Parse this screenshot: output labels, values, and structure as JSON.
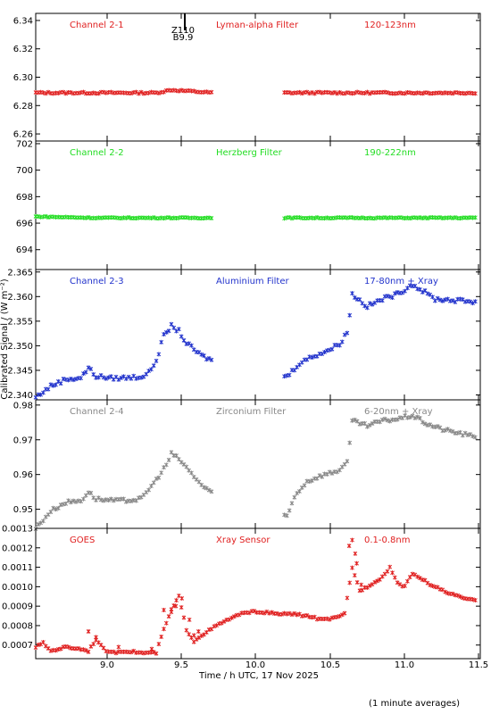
{
  "figure": {
    "xlabel": "Time / h UTC, 17 Nov 2025",
    "ylabel": "Calibrated Signal / (W m⁻²)",
    "footnote": "(1 minute averages)",
    "x_ticks": [
      "9.0",
      "9.5",
      "10.0",
      "10.5",
      "11.0",
      "11.5"
    ],
    "flare_marker": {
      "label_top": "Z110",
      "label_bottom": "B9.9"
    }
  },
  "chart_data": [
    {
      "type": "scatter",
      "panel": "channel-2-1",
      "labels": [
        "Channel 2-1",
        "Lyman-alpha Filter",
        "120-123nm"
      ],
      "color": "#e02020",
      "xlim": [
        8.6,
        11.55
      ],
      "ylim": [
        6.255,
        6.345
      ],
      "y_ticks": [
        "6.34",
        "6.32",
        "6.30",
        "6.28",
        "6.26"
      ],
      "gaps": [
        [
          9.78,
          10.25
        ]
      ],
      "x": [
        8.6,
        9.0,
        9.4,
        9.5,
        9.78,
        10.25,
        10.7,
        11.0,
        11.5
      ],
      "values": [
        6.289,
        6.289,
        6.289,
        6.291,
        6.289,
        6.289,
        6.289,
        6.289,
        6.289
      ],
      "noise": 0.0006
    },
    {
      "type": "scatter",
      "panel": "channel-2-2",
      "labels": [
        "Channel 2-2",
        "Herzberg Filter",
        "190-222nm"
      ],
      "color": "#22dd22",
      "xlim": [
        8.6,
        11.55
      ],
      "ylim": [
        692.5,
        702.2
      ],
      "y_ticks": [
        "702",
        "700",
        "698",
        "696",
        "694"
      ],
      "gaps": [
        [
          9.78,
          10.25
        ]
      ],
      "x": [
        8.6,
        9.0,
        9.5,
        9.78,
        10.25,
        10.8,
        11.5
      ],
      "values": [
        696.5,
        696.4,
        696.4,
        696.4,
        696.4,
        696.4,
        696.4
      ],
      "noise": 0.04
    },
    {
      "type": "scatter",
      "panel": "channel-2-3",
      "labels": [
        "Channel 2-3",
        "Aluminium Filter",
        "17-80nm + Xray"
      ],
      "color": "#2233cc",
      "xlim": [
        8.6,
        11.55
      ],
      "ylim": [
        2.339,
        2.3655
      ],
      "y_ticks": [
        "2.365",
        "2.360",
        "2.355",
        "2.350",
        "2.345",
        "2.340"
      ],
      "gaps": [
        [
          9.78,
          10.25
        ]
      ],
      "x": [
        8.6,
        8.7,
        8.8,
        8.9,
        8.95,
        9.0,
        9.1,
        9.2,
        9.3,
        9.35,
        9.4,
        9.45,
        9.5,
        9.55,
        9.6,
        9.7,
        9.77,
        10.27,
        10.35,
        10.45,
        10.55,
        10.62,
        10.67,
        10.7,
        10.8,
        10.9,
        11.0,
        11.1,
        11.15,
        11.25,
        11.35,
        11.5
      ],
      "values": [
        2.3395,
        2.3418,
        2.3432,
        2.3435,
        2.3455,
        2.3438,
        2.3434,
        2.3435,
        2.3437,
        2.3445,
        2.347,
        2.352,
        2.354,
        2.353,
        2.3505,
        2.348,
        2.347,
        2.3438,
        2.3465,
        2.348,
        2.3492,
        2.3505,
        2.353,
        2.3605,
        2.358,
        2.3595,
        2.3605,
        2.3625,
        2.3615,
        2.3595,
        2.3593,
        2.359
      ],
      "noise": 0.0004
    },
    {
      "type": "scatter",
      "panel": "channel-2-4",
      "labels": [
        "Channel 2-4",
        "Zirconium Filter",
        "6-20nm + Xray"
      ],
      "color": "#888888",
      "xlim": [
        8.6,
        11.55
      ],
      "ylim": [
        0.9445,
        0.9815
      ],
      "y_ticks": [
        "0.98",
        "0.97",
        "0.96",
        "0.95"
      ],
      "gaps": [
        [
          9.78,
          10.25
        ]
      ],
      "x": [
        8.6,
        8.7,
        8.8,
        8.9,
        8.95,
        9.0,
        9.1,
        9.2,
        9.3,
        9.4,
        9.47,
        9.5,
        9.55,
        9.6,
        9.7,
        9.77,
        10.27,
        10.32,
        10.4,
        10.5,
        10.6,
        10.67,
        10.7,
        10.8,
        10.9,
        11.0,
        11.1,
        11.2,
        11.3,
        11.5
      ],
      "values": [
        0.9445,
        0.9495,
        0.952,
        0.9525,
        0.955,
        0.953,
        0.9525,
        0.9525,
        0.953,
        0.9585,
        0.963,
        0.966,
        0.9645,
        0.962,
        0.957,
        0.9545,
        0.948,
        0.954,
        0.958,
        0.9598,
        0.961,
        0.9635,
        0.9755,
        0.974,
        0.9755,
        0.976,
        0.977,
        0.9745,
        0.973,
        0.971
      ],
      "noise": 0.0005
    },
    {
      "type": "scatter",
      "panel": "goes",
      "labels": [
        "GOES",
        "Xray Sensor",
        "0.1-0.8nm"
      ],
      "color": "#e02020",
      "xlim": [
        8.6,
        11.55
      ],
      "ylim": [
        0.00063,
        0.0013
      ],
      "y_ticks": [
        "0.0013",
        "0.0012",
        "0.0011",
        "0.0010",
        "0.0009",
        "0.0008",
        "0.0007"
      ],
      "gaps": [],
      "x": [
        8.6,
        8.65,
        8.7,
        8.8,
        8.9,
        8.95,
        9.0,
        9.05,
        9.1,
        9.2,
        9.3,
        9.4,
        9.45,
        9.5,
        9.55,
        9.6,
        9.65,
        9.7,
        9.8,
        9.9,
        10.0,
        10.1,
        10.2,
        10.3,
        10.4,
        10.5,
        10.6,
        10.65,
        10.7,
        10.75,
        10.8,
        10.9,
        10.95,
        11.0,
        11.05,
        11.1,
        11.2,
        11.3,
        11.4,
        11.5
      ],
      "values": [
        0.00069,
        0.00071,
        0.00067,
        0.00069,
        0.00068,
        0.00067,
        0.00073,
        0.00068,
        0.00066,
        0.00067,
        0.00066,
        0.00066,
        0.00078,
        0.00088,
        0.00095,
        0.00078,
        0.00072,
        0.00075,
        0.0008,
        0.00084,
        0.00087,
        0.00087,
        0.00086,
        0.00086,
        0.00085,
        0.00083,
        0.00084,
        0.00086,
        0.0011,
        0.00098,
        0.001,
        0.00105,
        0.0011,
        0.00102,
        0.001,
        0.00107,
        0.00102,
        0.00098,
        0.00095,
        0.00093
      ],
      "noise": 5e-06,
      "outliers": [
        [
          8.95,
          0.00077
        ],
        [
          9.0,
          0.00074
        ],
        [
          9.15,
          0.00069
        ],
        [
          9.37,
          0.00068
        ],
        [
          9.45,
          0.00088
        ],
        [
          9.5,
          0.00087
        ],
        [
          9.53,
          0.0009
        ],
        [
          9.57,
          0.00094
        ],
        [
          9.62,
          0.00083
        ],
        [
          9.65,
          0.00075
        ],
        [
          9.68,
          0.00077
        ],
        [
          10.68,
          0.00121
        ],
        [
          10.7,
          0.00124
        ],
        [
          10.72,
          0.00117
        ],
        [
          10.73,
          0.00112
        ],
        [
          10.76,
          0.00101
        ]
      ]
    }
  ]
}
